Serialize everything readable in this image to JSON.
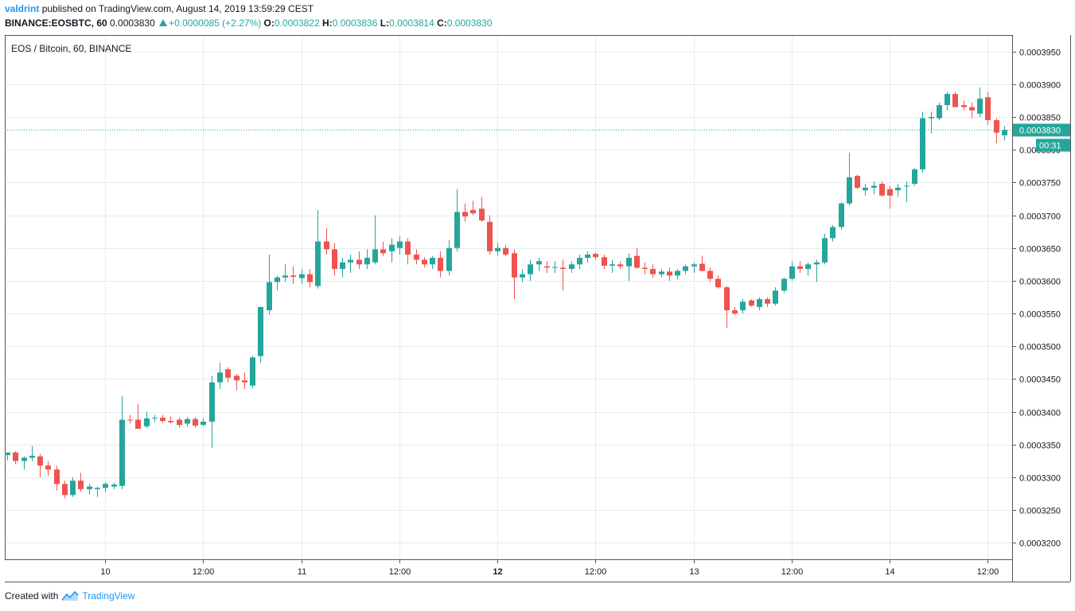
{
  "header": {
    "author": "valdrint",
    "published_text": "published on TradingView.com, August 14, 2019 13:59:29 CEST",
    "symbol": "BINANCE:EOSBTC, 60",
    "last_price": "0.0003830",
    "change": "+0.0000085 (+2.27%)",
    "open_label": "O:",
    "open_value": "0.0003822",
    "high_label": "H:",
    "high_value": "0.0003836",
    "low_label": "L:",
    "low_value": "0.0003814",
    "close_label": "C:",
    "close_value": "0.0003830"
  },
  "legend_text": "EOS / Bitcoin, 60, BINANCE",
  "footer": {
    "created_with": "Created with",
    "brand": "TradingView"
  },
  "price_badge": "0.0003830",
  "countdown_badge": "00:31",
  "colors": {
    "up": "#26a69a",
    "down": "#ef5350",
    "grid": "#e1ecf2",
    "axis": "#555555",
    "brand": "#2196f3"
  },
  "chart_data": {
    "type": "candlestick",
    "title": "EOS / Bitcoin, 60, BINANCE",
    "timeframe": "60",
    "ylim": [
      0.0003175,
      0.0003975
    ],
    "y_ticks": [
      "0.0003200",
      "0.0003250",
      "0.0003300",
      "0.0003350",
      "0.0003400",
      "0.0003450",
      "0.0003500",
      "0.0003550",
      "0.0003600",
      "0.0003650",
      "0.0003700",
      "0.0003750",
      "0.0003800",
      "0.0003850",
      "0.0003900",
      "0.0003950"
    ],
    "x_ticks": [
      {
        "label": "10",
        "bar": 12,
        "bold": false
      },
      {
        "label": "12:00",
        "bar": 24,
        "bold": false
      },
      {
        "label": "11",
        "bar": 36,
        "bold": false
      },
      {
        "label": "12:00",
        "bar": 48,
        "bold": false
      },
      {
        "label": "12",
        "bar": 60,
        "bold": true
      },
      {
        "label": "12:00",
        "bar": 72,
        "bold": false
      },
      {
        "label": "13",
        "bar": 84,
        "bold": false
      },
      {
        "label": "12:00",
        "bar": 96,
        "bold": false
      },
      {
        "label": "14",
        "bar": 108,
        "bold": false
      },
      {
        "label": "12:00",
        "bar": 120,
        "bold": false
      }
    ],
    "candles": [
      [
        0.0003334,
        0.0003338,
        0.0003326,
        0.0003338
      ],
      [
        0.0003338,
        0.000334,
        0.000332,
        0.0003325
      ],
      [
        0.0003325,
        0.0003332,
        0.0003312,
        0.000333
      ],
      [
        0.000333,
        0.0003348,
        0.0003325,
        0.0003333
      ],
      [
        0.0003332,
        0.0003336,
        0.00033,
        0.0003318
      ],
      [
        0.0003318,
        0.0003325,
        0.0003302,
        0.0003312
      ],
      [
        0.0003312,
        0.0003318,
        0.000328,
        0.000329
      ],
      [
        0.000329,
        0.0003295,
        0.0003268,
        0.0003273
      ],
      [
        0.0003273,
        0.00033,
        0.000327,
        0.0003295
      ],
      [
        0.0003295,
        0.0003307,
        0.0003278,
        0.0003282
      ],
      [
        0.0003282,
        0.000329,
        0.0003274,
        0.0003286
      ],
      [
        0.0003282,
        0.0003286,
        0.000327,
        0.0003284
      ],
      [
        0.0003284,
        0.0003292,
        0.0003278,
        0.000329
      ],
      [
        0.0003286,
        0.0003292,
        0.0003282,
        0.0003289
      ],
      [
        0.0003287,
        0.0003424,
        0.0003282,
        0.0003388
      ],
      [
        0.0003388,
        0.0003395,
        0.0003382,
        0.0003387
      ],
      [
        0.0003388,
        0.0003412,
        0.0003374,
        0.0003374
      ],
      [
        0.0003378,
        0.00034,
        0.0003375,
        0.000339
      ],
      [
        0.000339,
        0.0003395,
        0.0003385,
        0.0003391
      ],
      [
        0.0003391,
        0.0003395,
        0.0003383,
        0.0003386
      ],
      [
        0.0003386,
        0.0003393,
        0.0003382,
        0.0003384
      ],
      [
        0.0003388,
        0.0003392,
        0.0003376,
        0.000338
      ],
      [
        0.0003382,
        0.0003392,
        0.0003378,
        0.0003389
      ],
      [
        0.0003389,
        0.0003392,
        0.0003376,
        0.0003379
      ],
      [
        0.000338,
        0.000339,
        0.0003378,
        0.0003385
      ],
      [
        0.0003385,
        0.0003455,
        0.0003345,
        0.0003445
      ],
      [
        0.0003445,
        0.0003475,
        0.0003435,
        0.000346
      ],
      [
        0.0003465,
        0.0003468,
        0.0003445,
        0.0003452
      ],
      [
        0.0003455,
        0.0003458,
        0.0003433,
        0.0003448
      ],
      [
        0.0003448,
        0.000346,
        0.0003435,
        0.0003445
      ],
      [
        0.000344,
        0.0003485,
        0.0003436,
        0.0003483
      ],
      [
        0.0003485,
        0.000356,
        0.0003475,
        0.000356
      ],
      [
        0.0003555,
        0.000364,
        0.0003548,
        0.0003598
      ],
      [
        0.0003598,
        0.0003608,
        0.0003585,
        0.0003605
      ],
      [
        0.0003605,
        0.0003625,
        0.0003598,
        0.0003608
      ],
      [
        0.0003608,
        0.0003622,
        0.0003595,
        0.0003606
      ],
      [
        0.0003604,
        0.0003618,
        0.0003595,
        0.000361
      ],
      [
        0.000361,
        0.0003618,
        0.000359,
        0.0003598
      ],
      [
        0.0003592,
        0.0003708,
        0.0003588,
        0.000366
      ],
      [
        0.000366,
        0.000368,
        0.000364,
        0.0003648
      ],
      [
        0.0003648,
        0.0003658,
        0.0003608,
        0.0003618
      ],
      [
        0.0003618,
        0.0003635,
        0.0003605,
        0.0003628
      ],
      [
        0.0003628,
        0.000364,
        0.0003612,
        0.0003632
      ],
      [
        0.0003632,
        0.0003645,
        0.0003618,
        0.0003625
      ],
      [
        0.0003625,
        0.0003648,
        0.0003618,
        0.0003635
      ],
      [
        0.0003628,
        0.00037,
        0.0003625,
        0.0003648
      ],
      [
        0.0003648,
        0.000366,
        0.0003638,
        0.0003642
      ],
      [
        0.0003645,
        0.0003665,
        0.0003628,
        0.0003655
      ],
      [
        0.000365,
        0.0003668,
        0.000364,
        0.000366
      ],
      [
        0.000366,
        0.0003665,
        0.0003625,
        0.000364
      ],
      [
        0.000364,
        0.0003648,
        0.0003625,
        0.0003632
      ],
      [
        0.0003632,
        0.0003636,
        0.000362,
        0.0003625
      ],
      [
        0.0003625,
        0.0003638,
        0.0003618,
        0.0003635
      ],
      [
        0.0003635,
        0.0003645,
        0.0003605,
        0.0003615
      ],
      [
        0.0003615,
        0.0003662,
        0.0003608,
        0.000365
      ],
      [
        0.000365,
        0.000374,
        0.0003645,
        0.0003705
      ],
      [
        0.0003705,
        0.0003718,
        0.000369,
        0.0003698
      ],
      [
        0.0003708,
        0.0003722,
        0.00037,
        0.0003703
      ],
      [
        0.000371,
        0.0003728,
        0.000369,
        0.0003692
      ],
      [
        0.000369,
        0.00037,
        0.000364,
        0.0003645
      ],
      [
        0.0003645,
        0.0003658,
        0.0003638,
        0.000365
      ],
      [
        0.000365,
        0.0003655,
        0.0003638,
        0.000364
      ],
      [
        0.0003642,
        0.0003648,
        0.0003572,
        0.0003605
      ],
      [
        0.0003605,
        0.0003618,
        0.0003598,
        0.000361
      ],
      [
        0.000361,
        0.0003632,
        0.00036,
        0.0003625
      ],
      [
        0.0003625,
        0.0003635,
        0.0003615,
        0.000363
      ],
      [
        0.0003622,
        0.000363,
        0.0003612,
        0.000362
      ],
      [
        0.000362,
        0.000363,
        0.0003612,
        0.0003621
      ],
      [
        0.000362,
        0.0003632,
        0.0003585,
        0.0003618
      ],
      [
        0.0003618,
        0.000363,
        0.0003612,
        0.0003625
      ],
      [
        0.0003625,
        0.000364,
        0.0003618,
        0.0003635
      ],
      [
        0.0003635,
        0.0003645,
        0.0003628,
        0.000364
      ],
      [
        0.0003641,
        0.0003643,
        0.0003632,
        0.0003636
      ],
      [
        0.0003636,
        0.000364,
        0.0003618,
        0.0003623
      ],
      [
        0.0003623,
        0.0003632,
        0.0003612,
        0.0003625
      ],
      [
        0.0003625,
        0.000363,
        0.0003618,
        0.0003622
      ],
      [
        0.0003622,
        0.0003642,
        0.00036,
        0.0003635
      ],
      [
        0.0003638,
        0.000365,
        0.0003618,
        0.000362
      ],
      [
        0.000362,
        0.0003628,
        0.000361,
        0.0003618
      ],
      [
        0.0003618,
        0.0003625,
        0.0003605,
        0.000361
      ],
      [
        0.000361,
        0.0003618,
        0.0003605,
        0.0003614
      ],
      [
        0.0003614,
        0.000362,
        0.00036,
        0.0003608
      ],
      [
        0.0003608,
        0.0003618,
        0.0003602,
        0.0003615
      ],
      [
        0.0003615,
        0.0003625,
        0.000361,
        0.0003622
      ],
      [
        0.0003622,
        0.0003628,
        0.0003612,
        0.0003625
      ],
      [
        0.0003626,
        0.0003638,
        0.0003618,
        0.0003615
      ],
      [
        0.0003615,
        0.000362,
        0.0003598,
        0.0003603
      ],
      [
        0.0003603,
        0.0003608,
        0.0003588,
        0.000359
      ],
      [
        0.000359,
        0.0003592,
        0.0003528,
        0.0003555
      ],
      [
        0.0003555,
        0.000356,
        0.0003548,
        0.000355
      ],
      [
        0.0003555,
        0.0003572,
        0.000355,
        0.0003568
      ],
      [
        0.000357,
        0.0003572,
        0.000356,
        0.0003562
      ],
      [
        0.000356,
        0.0003575,
        0.0003555,
        0.0003572
      ],
      [
        0.0003572,
        0.0003575,
        0.000356,
        0.0003565
      ],
      [
        0.0003565,
        0.000359,
        0.0003562,
        0.0003585
      ],
      [
        0.0003585,
        0.0003605,
        0.0003582,
        0.0003603
      ],
      [
        0.0003603,
        0.000363,
        0.00036,
        0.0003622
      ],
      [
        0.0003622,
        0.000363,
        0.0003612,
        0.0003618
      ],
      [
        0.0003618,
        0.0003628,
        0.0003608,
        0.0003625
      ],
      [
        0.0003625,
        0.0003632,
        0.0003598,
        0.0003628
      ],
      [
        0.0003628,
        0.0003672,
        0.0003625,
        0.0003665
      ],
      [
        0.0003665,
        0.0003685,
        0.000366,
        0.0003682
      ],
      [
        0.0003682,
        0.000372,
        0.0003678,
        0.0003718
      ],
      [
        0.0003718,
        0.0003795,
        0.0003715,
        0.0003758
      ],
      [
        0.000376,
        0.0003762,
        0.000374,
        0.0003742
      ],
      [
        0.0003738,
        0.0003748,
        0.000373,
        0.0003742
      ],
      [
        0.0003742,
        0.0003752,
        0.0003732,
        0.0003745
      ],
      [
        0.0003748,
        0.0003752,
        0.0003728,
        0.000373
      ],
      [
        0.000374,
        0.0003745,
        0.000371,
        0.000373
      ],
      [
        0.0003738,
        0.0003748,
        0.0003728,
        0.0003742
      ],
      [
        0.0003745,
        0.0003752,
        0.000372,
        0.0003745
      ],
      [
        0.0003748,
        0.0003772,
        0.0003745,
        0.000377
      ],
      [
        0.000377,
        0.0003858,
        0.0003765,
        0.0003848
      ],
      [
        0.0003848,
        0.0003858,
        0.0003825,
        0.000385
      ],
      [
        0.0003848,
        0.0003872,
        0.0003845,
        0.0003868
      ],
      [
        0.0003868,
        0.0003888,
        0.000386,
        0.0003885
      ],
      [
        0.0003885,
        0.0003888,
        0.0003865,
        0.0003865
      ],
      [
        0.0003868,
        0.0003875,
        0.000386,
        0.0003865
      ],
      [
        0.0003865,
        0.0003872,
        0.0003848,
        0.000386
      ],
      [
        0.0003855,
        0.0003895,
        0.000385,
        0.0003878
      ],
      [
        0.000388,
        0.0003888,
        0.0003838,
        0.0003845
      ],
      [
        0.0003845,
        0.0003848,
        0.000381,
        0.0003826
      ],
      [
        0.0003822,
        0.0003836,
        0.0003814,
        0.000383
      ]
    ]
  }
}
